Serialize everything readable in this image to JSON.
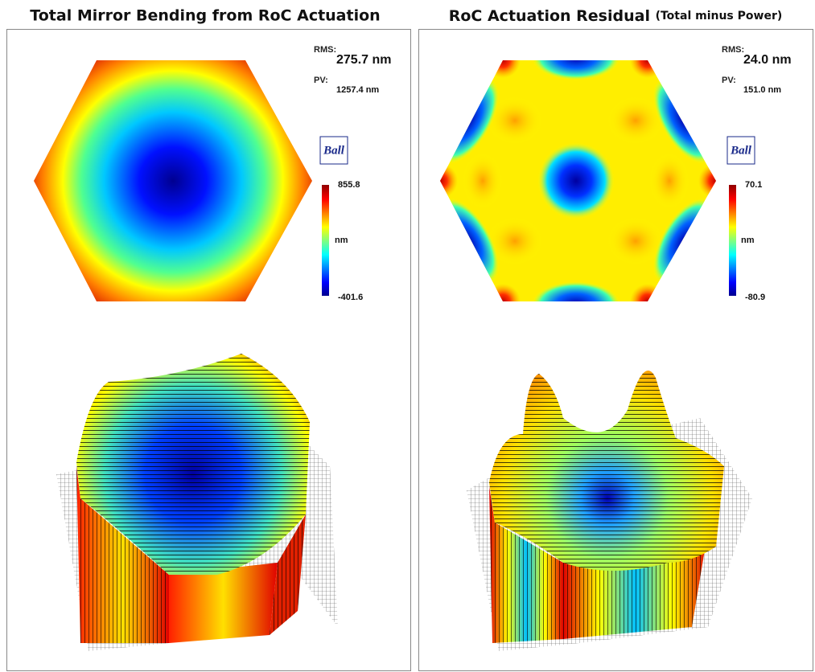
{
  "panels": [
    {
      "title": "Total Mirror Bending from RoC Actuation",
      "rms_label": "RMS:",
      "rms": "275.7 nm",
      "pv_label": "PV:",
      "pv": "1257.4 nm",
      "logo": "Ball",
      "colorbar": {
        "max": 855.8,
        "unit": "nm",
        "min": -401.6
      }
    },
    {
      "title": "RoC Actuation Residual",
      "title_note": "(Total minus Power)",
      "rms_label": "RMS:",
      "rms": "24.0 nm",
      "pv_label": "PV:",
      "pv": "151.0 nm",
      "logo": "Ball",
      "colorbar": {
        "max": 70.1,
        "unit": "nm",
        "min": -80.9
      }
    }
  ]
}
